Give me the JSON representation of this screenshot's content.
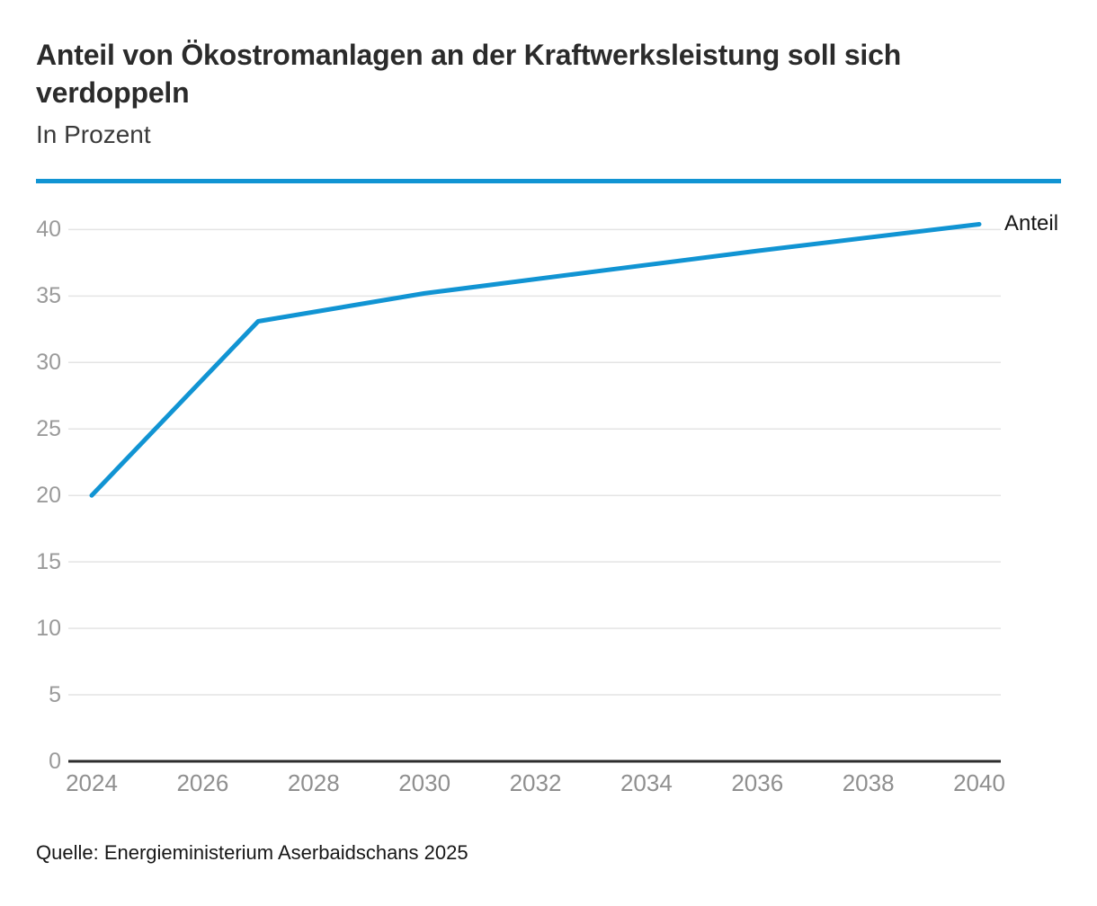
{
  "header": {
    "title": "Anteil von Ökostromanlagen an der Kraftwerksleistung soll sich verdoppeln",
    "subtitle": "In Prozent"
  },
  "footer": {
    "source": "Quelle: Energieministerium Aserbaidschans 2025"
  },
  "colors": {
    "accent_blue": "#1194d3",
    "grid": "#e4e4e4",
    "axis": "#2d2d2d",
    "tick_text": "#9a9a9a",
    "title_text": "#2b2b2b"
  },
  "chart_data": {
    "type": "line",
    "title": "Anteil von Ökostromanlagen an der Kraftwerksleistung soll sich verdoppeln",
    "subtitle": "In Prozent",
    "xlabel": "",
    "ylabel": "Prozent",
    "series": [
      {
        "name": "Anteil",
        "color": "#1194d3",
        "points": [
          {
            "x": 2024,
            "y": 20.0
          },
          {
            "x": 2027,
            "y": 33.1
          },
          {
            "x": 2030,
            "y": 35.2
          },
          {
            "x": 2033,
            "y": 36.8
          },
          {
            "x": 2036,
            "y": 38.4
          },
          {
            "x": 2040,
            "y": 40.4
          }
        ]
      }
    ],
    "end_label": "Anteil",
    "x_ticks": [
      2024,
      2026,
      2028,
      2030,
      2032,
      2034,
      2036,
      2038,
      2040
    ],
    "y_ticks": [
      0,
      5,
      10,
      15,
      20,
      25,
      30,
      35,
      40
    ],
    "xlim": [
      2024,
      2040
    ],
    "ylim": [
      0,
      42.4
    ],
    "grid": "horizontal-only",
    "legend_position": "right-of-line-end"
  }
}
